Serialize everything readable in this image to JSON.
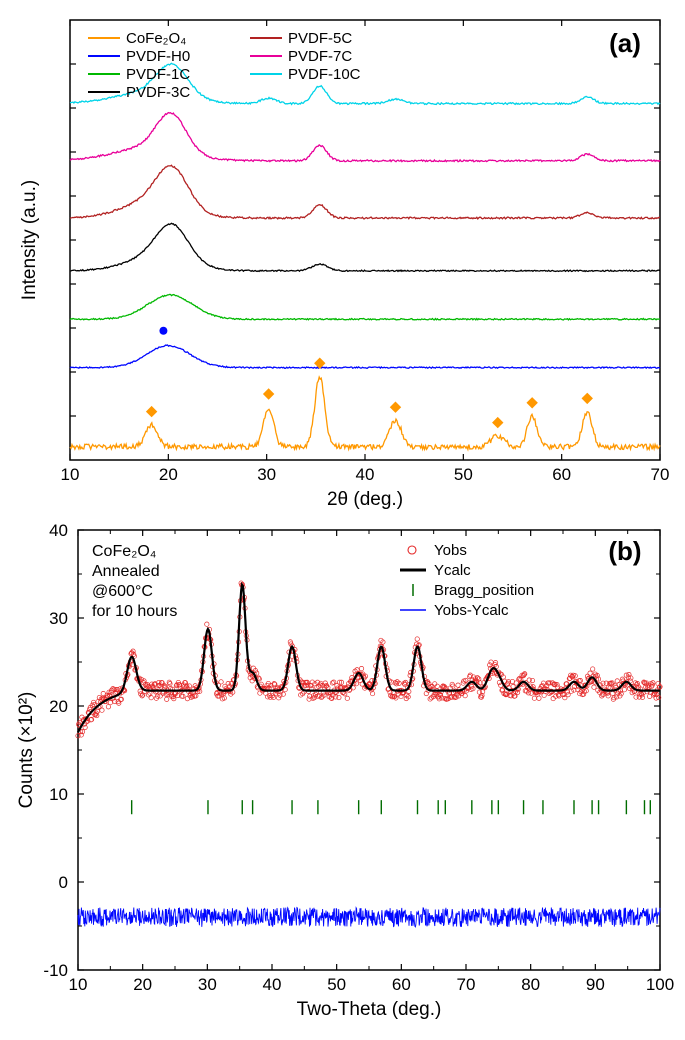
{
  "panel_a": {
    "type": "line-stacked-xrd",
    "panel_label": "(a)",
    "xlabel": "2θ (deg.)",
    "ylabel": "Intensity (a.u.)",
    "xlim": [
      10,
      70
    ],
    "xtick_step": 10,
    "xtick_labels": [
      "10",
      "20",
      "30",
      "40",
      "50",
      "60",
      "70"
    ],
    "yticks_visible": false,
    "background_color": "#ffffff",
    "axis_color": "#000000",
    "tick_fontsize": 17,
    "label_fontsize": 19,
    "line_width": 1.3,
    "legend": {
      "position": "top-left-two-column",
      "fontsize": 15,
      "columns": [
        [
          {
            "label": "CoFe₂O₄",
            "color": "#ff9800",
            "swatch": "line"
          },
          {
            "label": "PVDF-H0",
            "color": "#0007ff",
            "swatch": "line"
          },
          {
            "label": "PVDF-1C",
            "color": "#00b800",
            "swatch": "line"
          },
          {
            "label": "PVDF-3C",
            "color": "#000000",
            "swatch": "line"
          }
        ],
        [
          {
            "label": "PVDF-5C",
            "color": "#b22222",
            "swatch": "line"
          },
          {
            "label": "PVDF-7C",
            "color": "#e80099",
            "swatch": "line"
          },
          {
            "label": "PVDF-10C",
            "color": "#00d3e8",
            "swatch": "line"
          }
        ]
      ]
    },
    "markers": {
      "diamond_color": "#ff9800",
      "diamond_positions_2theta": [
        18.3,
        30.2,
        35.4,
        43.1,
        53.5,
        57.0,
        62.6
      ],
      "circle_color": "#0007ff",
      "circle_position_2theta": 19.5
    },
    "series": [
      {
        "name": "CoFe2O4",
        "color": "#ff9800",
        "baseline_offset": 0.03,
        "noise": 0.012,
        "peaks": [
          {
            "x": 18.3,
            "h": 0.05,
            "w": 0.6
          },
          {
            "x": 30.2,
            "h": 0.09,
            "w": 0.5
          },
          {
            "x": 35.4,
            "h": 0.16,
            "w": 0.5
          },
          {
            "x": 43.1,
            "h": 0.06,
            "w": 0.6
          },
          {
            "x": 53.5,
            "h": 0.025,
            "w": 0.7
          },
          {
            "x": 57.0,
            "h": 0.07,
            "w": 0.5
          },
          {
            "x": 62.6,
            "h": 0.08,
            "w": 0.5
          }
        ]
      },
      {
        "name": "PVDF-H0",
        "color": "#0007ff",
        "baseline_offset": 0.21,
        "noise": 0.003,
        "peaks": [
          {
            "x": 20.0,
            "h": 0.05,
            "w": 2.2
          }
        ]
      },
      {
        "name": "PVDF-1C",
        "color": "#00b800",
        "baseline_offset": 0.32,
        "noise": 0.003,
        "peaks": [
          {
            "x": 20.2,
            "h": 0.055,
            "w": 2.3
          }
        ]
      },
      {
        "name": "PVDF-3C",
        "color": "#000000",
        "baseline_offset": 0.43,
        "noise": 0.003,
        "peaks": [
          {
            "x": 19.0,
            "h": 0.035,
            "w": 3.0
          },
          {
            "x": 20.4,
            "h": 0.075,
            "w": 1.6
          },
          {
            "x": 35.4,
            "h": 0.015,
            "w": 0.8
          }
        ]
      },
      {
        "name": "PVDF-5C",
        "color": "#b22222",
        "baseline_offset": 0.55,
        "noise": 0.004,
        "peaks": [
          {
            "x": 18.5,
            "h": 0.04,
            "w": 3.0
          },
          {
            "x": 20.4,
            "h": 0.085,
            "w": 1.6
          },
          {
            "x": 35.4,
            "h": 0.03,
            "w": 0.7
          },
          {
            "x": 62.6,
            "h": 0.012,
            "w": 0.7
          }
        ]
      },
      {
        "name": "PVDF-7C",
        "color": "#e80099",
        "baseline_offset": 0.68,
        "noise": 0.004,
        "peaks": [
          {
            "x": 18.0,
            "h": 0.03,
            "w": 3.5
          },
          {
            "x": 20.3,
            "h": 0.085,
            "w": 1.5
          },
          {
            "x": 35.4,
            "h": 0.035,
            "w": 0.7
          },
          {
            "x": 62.6,
            "h": 0.015,
            "w": 0.7
          }
        ]
      },
      {
        "name": "PVDF-10C",
        "color": "#00d3e8",
        "baseline_offset": 0.81,
        "noise": 0.004,
        "peaks": [
          {
            "x": 18.0,
            "h": 0.025,
            "w": 3.5
          },
          {
            "x": 20.4,
            "h": 0.07,
            "w": 1.6
          },
          {
            "x": 30.2,
            "h": 0.012,
            "w": 0.8
          },
          {
            "x": 35.4,
            "h": 0.04,
            "w": 0.7
          },
          {
            "x": 43.1,
            "h": 0.01,
            "w": 0.8
          },
          {
            "x": 62.6,
            "h": 0.015,
            "w": 0.7
          }
        ]
      }
    ]
  },
  "panel_b": {
    "type": "rietveld-refinement",
    "panel_label": "(b)",
    "xlabel": "Two-Theta (deg.)",
    "ylabel": "Counts (×10²)",
    "xlim": [
      10,
      100
    ],
    "ylim": [
      -10,
      40
    ],
    "xtick_step": 10,
    "ytick_step": 10,
    "xtick_labels": [
      "10",
      "20",
      "30",
      "40",
      "50",
      "60",
      "70",
      "80",
      "90",
      "100"
    ],
    "ytick_labels": [
      "-10",
      "0",
      "10",
      "20",
      "30",
      "40"
    ],
    "background_color": "#ffffff",
    "axis_color": "#000000",
    "tick_fontsize": 17,
    "label_fontsize": 19,
    "annotations": [
      "CoFe₂O₄",
      "Annealed",
      "@600°C",
      "for 10 hours"
    ],
    "annotation_box": false,
    "legend": {
      "position": "top-right",
      "fontsize": 15,
      "items": [
        {
          "label": "Yobs",
          "color": "#e52929",
          "swatch": "open-circle"
        },
        {
          "label": "Ycalc",
          "color": "#000000",
          "swatch": "bold-line"
        },
        {
          "label": "Bragg_position",
          "color": "#006c00",
          "swatch": "tick"
        },
        {
          "label": "Yobs-Ycalc",
          "color": "#0007ff",
          "swatch": "line"
        }
      ]
    },
    "yobs": {
      "color": "#e52929",
      "marker_size": 2.2,
      "baseline_start": 17,
      "baseline_plateau": 22,
      "noise": 1.0,
      "peaks": [
        {
          "x": 18.3,
          "h": 4,
          "w": 0.7
        },
        {
          "x": 30.1,
          "h": 7,
          "w": 0.6
        },
        {
          "x": 35.4,
          "h": 12,
          "w": 0.5
        },
        {
          "x": 37.0,
          "h": 2,
          "w": 0.6
        },
        {
          "x": 43.1,
          "h": 5,
          "w": 0.6
        },
        {
          "x": 53.4,
          "h": 2,
          "w": 0.7
        },
        {
          "x": 56.9,
          "h": 5,
          "w": 0.6
        },
        {
          "x": 62.5,
          "h": 5,
          "w": 0.6
        },
        {
          "x": 70.9,
          "h": 1.0,
          "w": 0.7
        },
        {
          "x": 74.0,
          "h": 2.0,
          "w": 0.7
        },
        {
          "x": 75.0,
          "h": 1.2,
          "w": 0.7
        },
        {
          "x": 78.9,
          "h": 1.0,
          "w": 0.7
        },
        {
          "x": 86.7,
          "h": 1.0,
          "w": 0.7
        },
        {
          "x": 89.5,
          "h": 1.5,
          "w": 0.7
        },
        {
          "x": 94.8,
          "h": 1.0,
          "w": 0.7
        }
      ]
    },
    "ycalc": {
      "color": "#000000",
      "line_width": 2.2
    },
    "bragg": {
      "color": "#006c00",
      "y_position": 8.5,
      "tick_height": 1.6,
      "positions": [
        18.3,
        30.1,
        35.4,
        37.0,
        43.1,
        47.1,
        53.4,
        56.9,
        62.5,
        65.7,
        66.8,
        70.9,
        74.0,
        75.0,
        78.9,
        81.9,
        86.7,
        89.5,
        90.5,
        94.8,
        97.6,
        98.5
      ]
    },
    "diff": {
      "color": "#0007ff",
      "baseline": -4,
      "noise": 1.1,
      "line_width": 0.9
    }
  }
}
